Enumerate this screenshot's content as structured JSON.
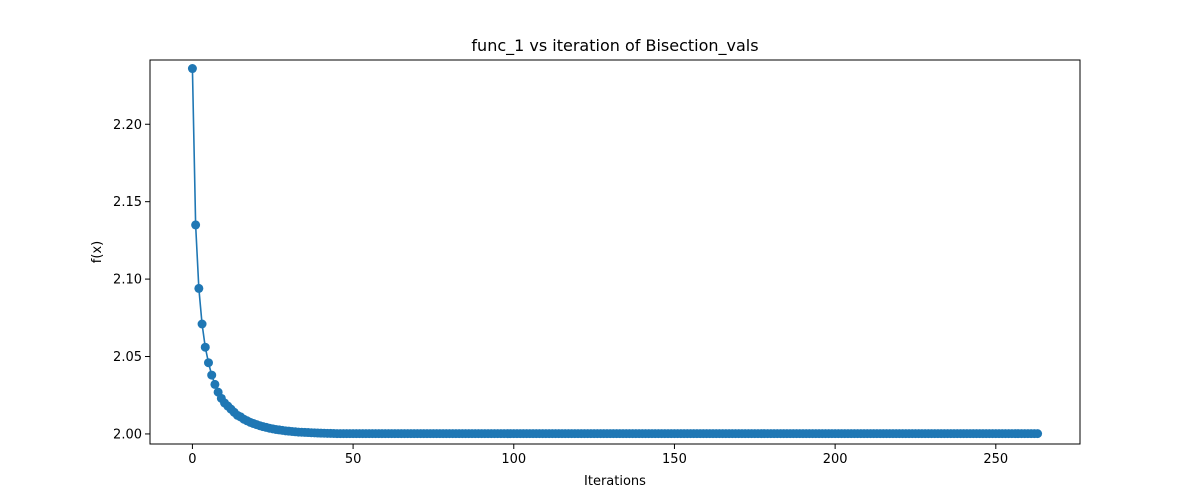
{
  "chart_data": {
    "type": "line",
    "title": "func_1 vs iteration of Bisection_vals",
    "xlabel": "Iterations",
    "ylabel": "f(x)",
    "xlim": [
      -13.2,
      276.2
    ],
    "ylim": [
      1.9935,
      2.2415
    ],
    "xticks": [
      0,
      50,
      100,
      150,
      200,
      250
    ],
    "yticks": [
      2.0,
      2.05,
      2.1,
      2.15,
      2.2
    ],
    "ytick_labels": [
      "2.00",
      "2.05",
      "2.10",
      "2.15",
      "2.20"
    ],
    "grid": false,
    "legend": "none",
    "series": [
      {
        "color": "#1f77b4",
        "marker": "circle",
        "x_start": 0,
        "x_end": 263,
        "y": [
          2.236,
          2.135,
          2.094,
          2.071,
          2.056,
          2.046,
          2.038,
          2.032,
          2.027,
          2.023,
          2.02,
          2.018,
          2.016,
          2.014,
          2.012,
          2.011,
          2.0095,
          2.0085,
          2.0075,
          2.0067,
          2.006,
          2.0053,
          2.0047,
          2.0042,
          2.0037,
          2.0033,
          2.0029,
          2.0026,
          2.0023,
          2.002,
          2.0018,
          2.0016,
          2.0014,
          2.0012,
          2.0011,
          2.001,
          2.0009,
          2.0008,
          2.0007,
          2.0006,
          2.0005,
          2.00045,
          2.0004,
          2.00035,
          2.0003
        ],
        "y_tail": 2.0002
      }
    ]
  }
}
